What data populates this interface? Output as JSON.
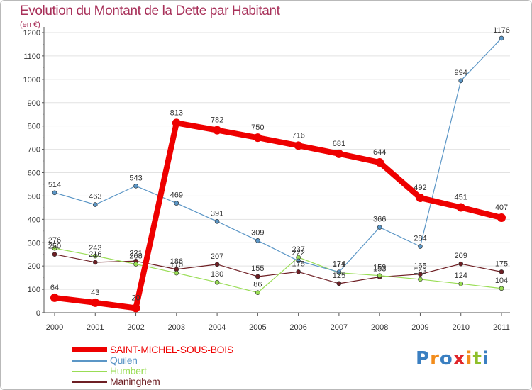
{
  "title": "Evolution du Montant de la Dette par Habitant",
  "unit": "(en €)",
  "logo": "Proxiti",
  "chart_data": {
    "type": "line",
    "title": "Evolution du Montant de la Dette par Habitant",
    "ylabel": "(en €)",
    "x": [
      "2000",
      "2001",
      "2002",
      "2003",
      "2004",
      "2005",
      "2006",
      "2007",
      "2008",
      "2009",
      "2010",
      "2011"
    ],
    "ylim": [
      0,
      1200
    ],
    "yticks": [
      0,
      100,
      200,
      300,
      400,
      500,
      600,
      700,
      800,
      900,
      1000,
      1100,
      1200
    ],
    "grid": "horizontal",
    "legend": "bottom-left",
    "series": [
      {
        "name": "SAINT-MICHEL-SOUS-BOIS",
        "color": "#ee0000",
        "values": [
          64,
          43,
          20,
          813,
          782,
          750,
          716,
          681,
          644,
          492,
          451,
          407
        ]
      },
      {
        "name": "Quilen",
        "color": "#5b96c6",
        "values": [
          514,
          463,
          543,
          469,
          391,
          309,
          222,
          174,
          366,
          284,
          994,
          1176
        ]
      },
      {
        "name": "Humbert",
        "color": "#99dd55",
        "values": [
          276,
          243,
          208,
          170,
          130,
          86,
          237,
          171,
          159,
          143,
          124,
          104
        ]
      },
      {
        "name": "Maninghem",
        "color": "#6e1f24",
        "values": [
          250,
          216,
          221,
          186,
          207,
          155,
          175,
          125,
          153,
          165,
          209,
          175
        ]
      }
    ]
  }
}
